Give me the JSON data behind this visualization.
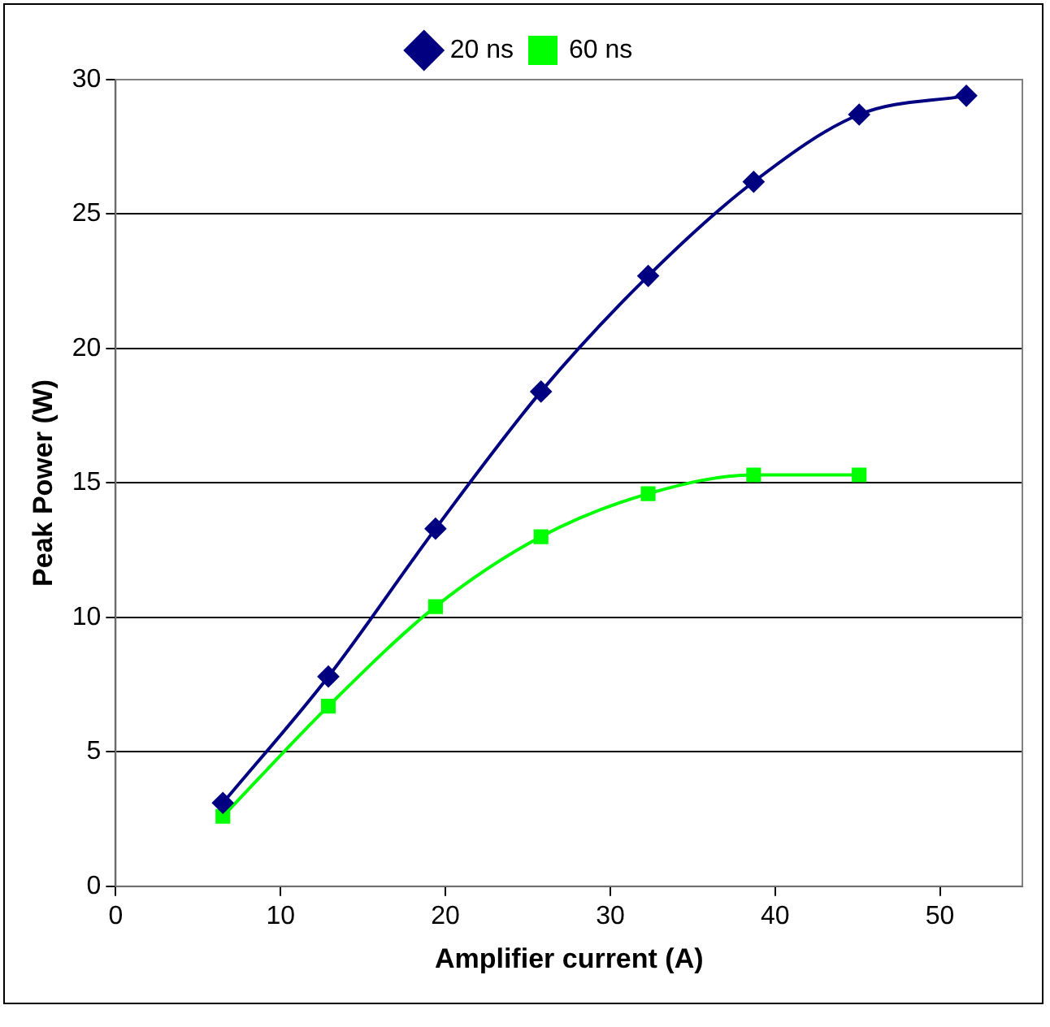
{
  "chart_data": {
    "type": "line",
    "xlabel": "Amplifier current (A)",
    "ylabel": "Peak Power (W)",
    "xlim": [
      0,
      55
    ],
    "xticks": [
      0,
      10,
      20,
      30,
      40,
      50
    ],
    "ylim": [
      0,
      30
    ],
    "yticks": [
      0,
      5,
      10,
      15,
      20,
      25,
      30
    ],
    "grid": "y",
    "legend": "top",
    "series": [
      {
        "name": "20 ns",
        "color": "#000080",
        "marker": "diamond",
        "x": [
          6.5,
          12.9,
          19.4,
          25.8,
          32.3,
          38.7,
          45.1,
          51.6
        ],
        "values": [
          3.1,
          7.8,
          13.3,
          18.4,
          22.7,
          26.2,
          28.7,
          29.4
        ]
      },
      {
        "name": "60 ns",
        "color": "#00ff00",
        "marker": "square",
        "x": [
          6.5,
          12.9,
          19.4,
          25.8,
          32.3,
          38.7,
          45.1
        ],
        "values": [
          2.6,
          6.7,
          10.4,
          13.0,
          14.6,
          15.3,
          15.3
        ]
      }
    ]
  }
}
